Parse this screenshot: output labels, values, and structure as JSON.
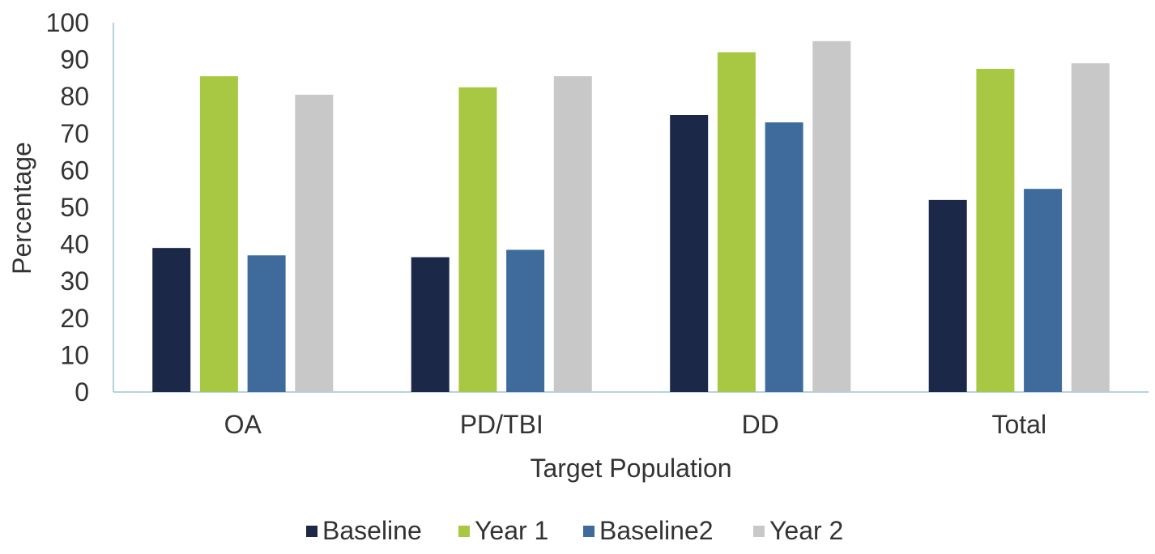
{
  "chart_data": {
    "type": "bar",
    "title": "",
    "xlabel": "Target Population",
    "ylabel": "Percentage",
    "ylim": [
      0,
      100
    ],
    "yticks": [
      0,
      10,
      20,
      30,
      40,
      50,
      60,
      70,
      80,
      90,
      100
    ],
    "categories": [
      "OA",
      "PD/TBI",
      "DD",
      "Total"
    ],
    "grid": false,
    "legend_position": "bottom",
    "series": [
      {
        "name": "Baseline",
        "color": "#1b2847",
        "values": [
          39,
          36.5,
          75,
          52
        ]
      },
      {
        "name": "Year 1",
        "color": "#a8c843",
        "values": [
          85.5,
          82.5,
          92,
          87.5
        ]
      },
      {
        "name": "Baseline2",
        "color": "#3e6b9b",
        "values": [
          37,
          38.5,
          73,
          55
        ]
      },
      {
        "name": "Year 2",
        "color": "#c8c8c8",
        "values": [
          80.5,
          85.5,
          95,
          89
        ]
      }
    ]
  }
}
